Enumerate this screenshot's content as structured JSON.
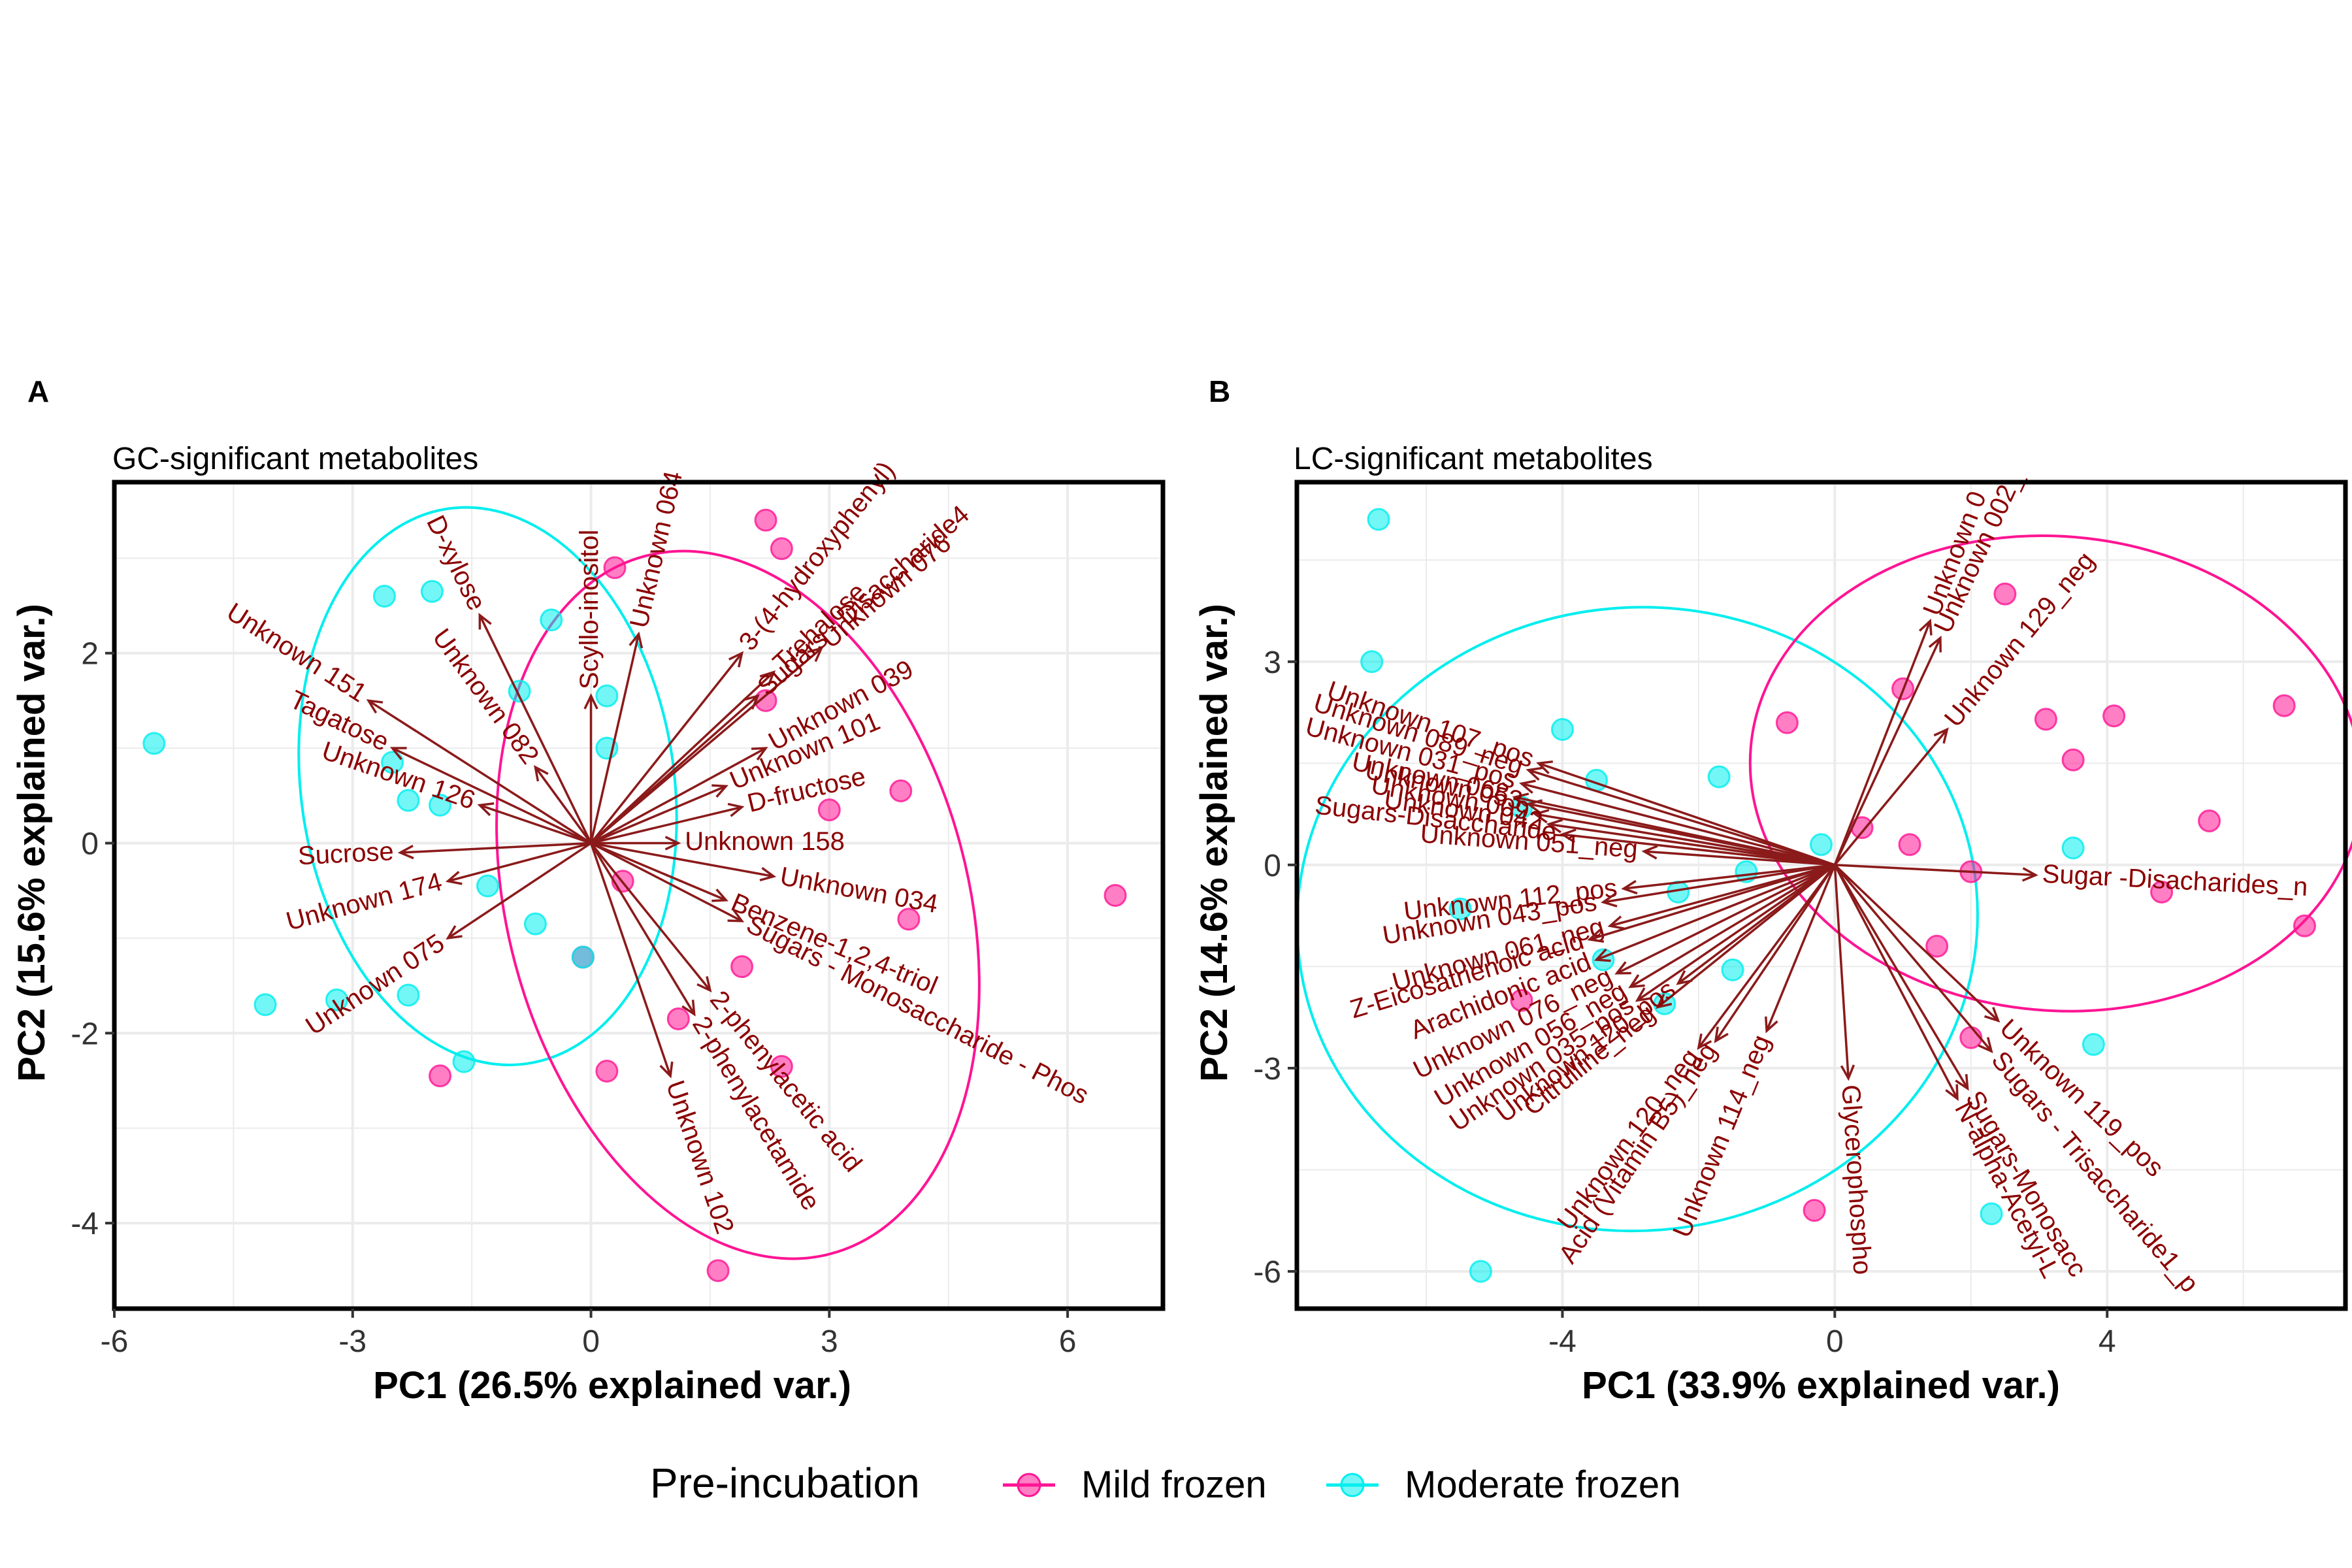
{
  "legend": {
    "title": "Pre-incubation",
    "items": [
      {
        "label": "Mild frozen",
        "color": "#ff1493"
      },
      {
        "label": "Moderate frozen",
        "color": "#00eeee"
      }
    ]
  },
  "colors": {
    "vector": "#8b1a1a",
    "vector_label": "#8b0000",
    "grid": "#ebebeb",
    "frame": "#000000"
  },
  "chart_data": [
    {
      "type": "scatter",
      "panel": "A",
      "subtitle": "GC-significant metabolites",
      "xlabel": "PC1 (26.5% explained var.)",
      "ylabel": "PC2 (15.6% explained var.)",
      "xlim": [
        -6,
        7.2
      ],
      "ylim": [
        -4.9,
        3.8
      ],
      "xticks": [
        -6,
        -3,
        0,
        3,
        6
      ],
      "yticks": [
        -4,
        -2,
        0,
        2
      ],
      "grid": true,
      "series": [
        {
          "name": "Mild frozen",
          "points": [
            [
              0.3,
              2.9
            ],
            [
              2.2,
              3.4
            ],
            [
              2.4,
              3.1
            ],
            [
              2.2,
              1.5
            ],
            [
              3.9,
              0.55
            ],
            [
              3.0,
              0.35
            ],
            [
              6.6,
              -0.55
            ],
            [
              4.0,
              -0.8
            ],
            [
              0.4,
              -0.4
            ],
            [
              1.9,
              -1.3
            ],
            [
              1.1,
              -1.85
            ],
            [
              -0.1,
              -1.2
            ],
            [
              0.2,
              -2.4
            ],
            [
              -1.9,
              -2.45
            ],
            [
              2.4,
              -2.35
            ],
            [
              1.6,
              -4.5
            ]
          ]
        },
        {
          "name": "Moderate frozen",
          "points": [
            [
              -5.5,
              1.05
            ],
            [
              -2.6,
              2.6
            ],
            [
              -2.0,
              2.65
            ],
            [
              -0.5,
              2.35
            ],
            [
              -0.9,
              1.6
            ],
            [
              0.2,
              1.55
            ],
            [
              0.2,
              1.0
            ],
            [
              -2.5,
              0.85
            ],
            [
              -2.3,
              0.45
            ],
            [
              -1.9,
              0.4
            ],
            [
              -1.3,
              -0.45
            ],
            [
              -0.7,
              -0.85
            ],
            [
              -0.1,
              -1.2
            ],
            [
              -4.1,
              -1.7
            ],
            [
              -3.2,
              -1.65
            ],
            [
              -2.3,
              -1.6
            ],
            [
              -1.6,
              -2.3
            ]
          ]
        }
      ],
      "ellipses": [
        {
          "group": "Moderate frozen",
          "center": [
            -1.3,
            0.6
          ],
          "rx": 2.35,
          "ry": 2.95,
          "angle": 8
        },
        {
          "group": "Mild frozen",
          "center": [
            1.85,
            -0.65
          ],
          "rx": 2.9,
          "ry": 3.8,
          "angle": 15
        }
      ],
      "vectors": [
        {
          "label": "D-xylose",
          "end": [
            -1.4,
            2.4
          ]
        },
        {
          "label": "Scyllo-inositol",
          "end": [
            0.0,
            1.55
          ]
        },
        {
          "label": "Unknown 064",
          "end": [
            0.6,
            2.2
          ]
        },
        {
          "label": "Unknown 151",
          "end": [
            -2.8,
            1.5
          ]
        },
        {
          "label": "Unknown 082",
          "end": [
            -0.7,
            0.8
          ]
        },
        {
          "label": "Tagatose",
          "end": [
            -2.5,
            1.0
          ]
        },
        {
          "label": "Unknown 126",
          "end": [
            -1.4,
            0.4
          ]
        },
        {
          "label": "Sucrose",
          "end": [
            -2.4,
            -0.1
          ]
        },
        {
          "label": "Unknown 174",
          "end": [
            -1.8,
            -0.4
          ]
        },
        {
          "label": "Unknown 075",
          "end": [
            -1.8,
            -1.0
          ]
        },
        {
          "label": "3-(4-hydroxyphenyl)",
          "end": [
            1.9,
            2.0
          ]
        },
        {
          "label": "Trehalose",
          "end": [
            2.3,
            1.8
          ]
        },
        {
          "label": "Unknown 076",
          "end": [
            2.9,
            2.05
          ]
        },
        {
          "label": "Sugars - Disaccharide4",
          "end": [
            2.1,
            1.55
          ]
        },
        {
          "label": "Unknown 039",
          "end": [
            2.2,
            1.0
          ]
        },
        {
          "label": "Unknown 101",
          "end": [
            1.7,
            0.6
          ]
        },
        {
          "label": "D-fructose",
          "end": [
            1.9,
            0.38
          ]
        },
        {
          "label": "Unknown 158",
          "end": [
            1.1,
            0.0
          ]
        },
        {
          "label": "Unknown 034",
          "end": [
            2.3,
            -0.35
          ]
        },
        {
          "label": "Benzene-1,2,4-triol",
          "end": [
            1.7,
            -0.6
          ]
        },
        {
          "label": "Sugars - Monosaccharide - Phos",
          "end": [
            1.9,
            -0.82
          ]
        },
        {
          "label": "2-phenylacetic acid",
          "end": [
            1.5,
            -1.55
          ]
        },
        {
          "label": "2-phenylacetamide",
          "end": [
            1.3,
            -1.8
          ]
        },
        {
          "label": "Unknown 102",
          "end": [
            1.0,
            -2.45
          ]
        }
      ]
    },
    {
      "type": "scatter",
      "panel": "B",
      "subtitle": "LC-significant metabolites",
      "xlabel": "PC1 (33.9% explained var.)",
      "ylabel": "PC2 (14.6% explained var.)",
      "xlim": [
        -7.9,
        7.5
      ],
      "ylim": [
        -6.55,
        5.65
      ],
      "xticks": [
        -4,
        0,
        4
      ],
      "yticks": [
        -6,
        -3,
        0,
        3
      ],
      "grid": true,
      "series": [
        {
          "name": "Mild frozen",
          "points": [
            [
              2.5,
              4.0
            ],
            [
              1.0,
              2.6
            ],
            [
              -0.7,
              2.1
            ],
            [
              3.1,
              2.15
            ],
            [
              3.5,
              1.55
            ],
            [
              4.1,
              2.2
            ],
            [
              6.6,
              2.35
            ],
            [
              5.5,
              0.65
            ],
            [
              0.4,
              0.55
            ],
            [
              1.1,
              0.3
            ],
            [
              2.0,
              -0.1
            ],
            [
              4.8,
              -0.4
            ],
            [
              6.9,
              -0.9
            ],
            [
              1.5,
              -1.2
            ],
            [
              2.0,
              -2.55
            ],
            [
              -4.6,
              -2.0
            ],
            [
              -0.3,
              -5.1
            ]
          ]
        },
        {
          "name": "Moderate frozen",
          "points": [
            [
              -6.7,
              5.1
            ],
            [
              -6.8,
              3.0
            ],
            [
              -4.0,
              2.0
            ],
            [
              -3.5,
              1.25
            ],
            [
              -1.7,
              1.3
            ],
            [
              -4.6,
              0.85
            ],
            [
              -0.2,
              0.3
            ],
            [
              -1.3,
              -0.1
            ],
            [
              -5.5,
              -0.65
            ],
            [
              -2.3,
              -0.4
            ],
            [
              -1.5,
              -1.55
            ],
            [
              -3.4,
              -1.4
            ],
            [
              -2.5,
              -2.05
            ],
            [
              3.5,
              0.25
            ],
            [
              3.8,
              -2.65
            ],
            [
              -5.2,
              -6.0
            ],
            [
              2.3,
              -5.15
            ]
          ]
        }
      ],
      "ellipses": [
        {
          "group": "Moderate frozen",
          "center": [
            -2.9,
            -0.8
          ],
          "rx": 5.0,
          "ry": 4.6,
          "angle": 5
        },
        {
          "group": "Mild frozen",
          "center": [
            3.25,
            1.35
          ],
          "rx": 4.5,
          "ry": 3.5,
          "angle": -5
        }
      ],
      "vectors": [
        {
          "label": "Unknown 0",
          "end": [
            1.4,
            3.6
          ]
        },
        {
          "label": "Unknown 002_",
          "end": [
            1.55,
            3.35
          ]
        },
        {
          "label": "Unknown 129_neg",
          "end": [
            1.65,
            2.0
          ]
        },
        {
          "label": "Unknown 107_pos",
          "end": [
            -4.35,
            1.5
          ]
        },
        {
          "label": "Unknown 089_neg",
          "end": [
            -4.5,
            1.4
          ]
        },
        {
          "label": "Unknown 031_pos",
          "end": [
            -4.6,
            1.2
          ]
        },
        {
          "label": "Unknown 068",
          "end": [
            -4.7,
            1.0
          ]
        },
        {
          "label": "Unknown 053",
          "end": [
            -4.5,
            0.9
          ]
        },
        {
          "label": "Unknown 009",
          "end": [
            -4.4,
            0.75
          ]
        },
        {
          "label": "Unknown 042",
          "end": [
            -4.2,
            0.6
          ]
        },
        {
          "label": "Sugars-Disaccharide",
          "end": [
            -4.0,
            0.45
          ]
        },
        {
          "label": "Unknown 051_neg",
          "end": [
            -2.8,
            0.2
          ]
        },
        {
          "label": "Sugar -Disacharides_n",
          "end": [
            2.95,
            -0.15
          ]
        },
        {
          "label": "Unknown 112_pos",
          "end": [
            -3.1,
            -0.35
          ]
        },
        {
          "label": "Unknown 043_pos",
          "end": [
            -3.4,
            -0.55
          ]
        },
        {
          "label": "Unknown 061_neg",
          "end": [
            -3.3,
            -0.9
          ]
        },
        {
          "label": "Z-Eicosatrienoic acid",
          "end": [
            -3.6,
            -1.1
          ]
        },
        {
          "label": "Arachidonic acid",
          "end": [
            -3.5,
            -1.4
          ]
        },
        {
          "label": "Unknown 076_neg",
          "end": [
            -3.2,
            -1.6
          ]
        },
        {
          "label": "Unknown 056_neg",
          "end": [
            -3.0,
            -1.8
          ]
        },
        {
          "label": "Unknown 035_pos",
          "end": [
            -2.9,
            -2.0
          ]
        },
        {
          "label": "Citrulline_neg",
          "end": [
            -2.6,
            -2.1
          ]
        },
        {
          "label": "Unknown 120_pos",
          "end": [
            -2.3,
            -1.75
          ]
        },
        {
          "label": "Unknown 120_neg",
          "end": [
            -2.0,
            -2.7
          ]
        },
        {
          "label": "Acid (Vitamin B5)_neg",
          "end": [
            -1.75,
            -2.6
          ]
        },
        {
          "label": "Unknown 114_neg",
          "end": [
            -1.0,
            -2.45
          ]
        },
        {
          "label": "Glycerophospho",
          "end": [
            0.2,
            -3.15
          ]
        },
        {
          "label": "Unknown 119_pos",
          "end": [
            2.4,
            -2.3
          ]
        },
        {
          "label": "Sugars - Trisaccharide1_p",
          "end": [
            2.3,
            -2.75
          ]
        },
        {
          "label": "Sugars-Monosacc",
          "end": [
            1.95,
            -3.3
          ]
        },
        {
          "label": "N-alpha-Acetyl-L",
          "end": [
            1.8,
            -3.45
          ]
        }
      ]
    }
  ]
}
